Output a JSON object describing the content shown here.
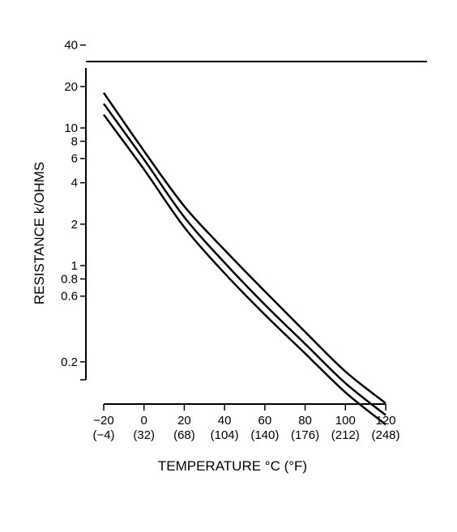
{
  "chart_data": {
    "type": "line",
    "title": "",
    "xlabel": "TEMPERATURE °C (°F)",
    "ylabel": "RESISTANCE k/OHMS",
    "y_scale": "log",
    "xlim": [
      -20,
      120
    ],
    "y_ticks": [
      {
        "value": 40,
        "label": "40"
      },
      {
        "value": 20,
        "label": "20"
      },
      {
        "value": 10,
        "label": "10"
      },
      {
        "value": 8,
        "label": "8"
      },
      {
        "value": 6,
        "label": "6"
      },
      {
        "value": 4,
        "label": "4"
      },
      {
        "value": 2,
        "label": "2"
      },
      {
        "value": 1,
        "label": "1"
      },
      {
        "value": 0.8,
        "label": "0.8"
      },
      {
        "value": 0.6,
        "label": "0.6"
      },
      {
        "value": 0.2,
        "label": "0.2"
      }
    ],
    "x_ticks": [
      {
        "value": -20,
        "label": "−20",
        "sublabel": "(−4)"
      },
      {
        "value": 0,
        "label": "0",
        "sublabel": "(32)"
      },
      {
        "value": 20,
        "label": "20",
        "sublabel": "(68)"
      },
      {
        "value": 40,
        "label": "40",
        "sublabel": "(104)"
      },
      {
        "value": 60,
        "label": "60",
        "sublabel": "(140)"
      },
      {
        "value": 80,
        "label": "80",
        "sublabel": "(176)"
      },
      {
        "value": 100,
        "label": "100",
        "sublabel": "(212)"
      },
      {
        "value": 120,
        "label": "120",
        "sublabel": "(248)"
      }
    ],
    "x": [
      -20,
      0,
      20,
      40,
      60,
      80,
      100,
      120
    ],
    "series": [
      {
        "values": [
          18,
          6.8,
          2.7,
          1.3,
          0.65,
          0.33,
          0.17,
          0.1
        ]
      },
      {
        "values": [
          15,
          5.9,
          2.25,
          1.05,
          0.52,
          0.27,
          0.14,
          0.082
        ]
      },
      {
        "values": [
          12.5,
          5,
          1.9,
          0.88,
          0.44,
          0.23,
          0.12,
          0.07
        ]
      }
    ],
    "line_color": "#000000",
    "grid": false,
    "legend": "none"
  }
}
